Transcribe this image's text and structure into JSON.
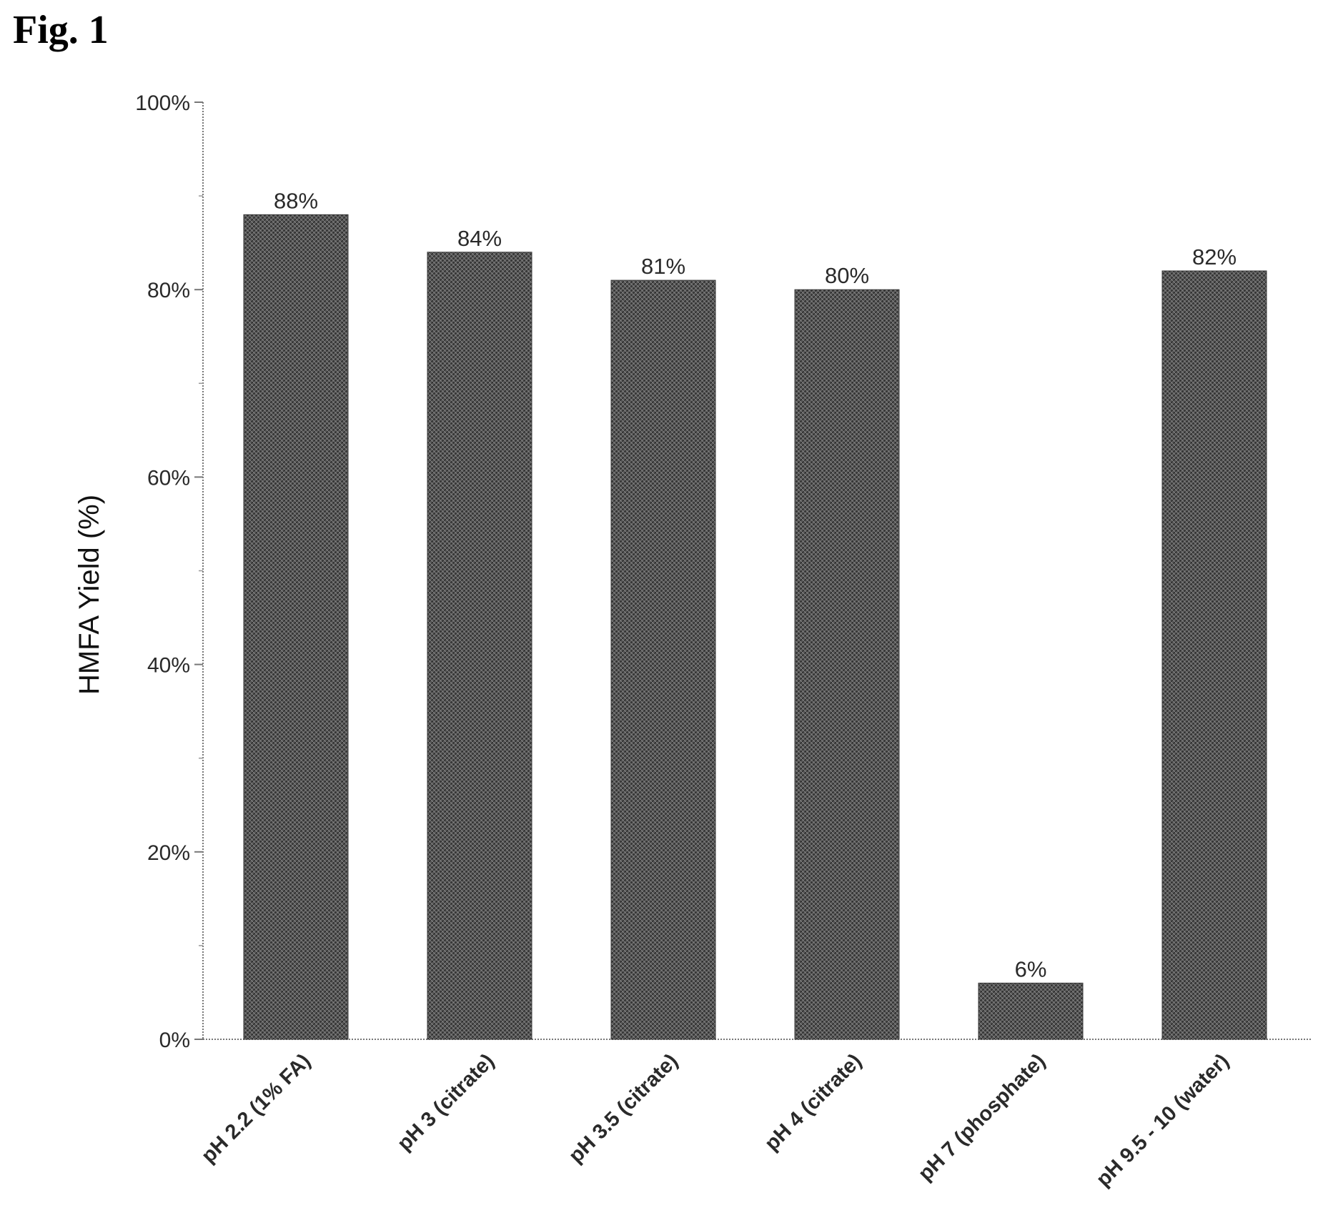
{
  "figure_label": "Fig. 1",
  "chart_data": {
    "type": "bar",
    "ylabel": "HMFA Yield (%)",
    "xlabel": "",
    "ylim": [
      0,
      100
    ],
    "yticks": [
      0,
      20,
      40,
      60,
      80,
      100
    ],
    "ytick_labels": [
      "0%",
      "20%",
      "40%",
      "60%",
      "80%",
      "100%"
    ],
    "categories": [
      "pH 2.2 (1% FA)",
      "pH 3 (citrate)",
      "pH 3.5 (citrate)",
      "pH 4 (citrate)",
      "pH 7 (phosphate)",
      "pH 9.5 - 10 (water)"
    ],
    "values": [
      88,
      84,
      81,
      80,
      6,
      82
    ],
    "data_labels": [
      "88%",
      "84%",
      "81%",
      "80%",
      "6%",
      "82%"
    ],
    "bar_color": "#555555",
    "grid": false,
    "legend": "none"
  }
}
